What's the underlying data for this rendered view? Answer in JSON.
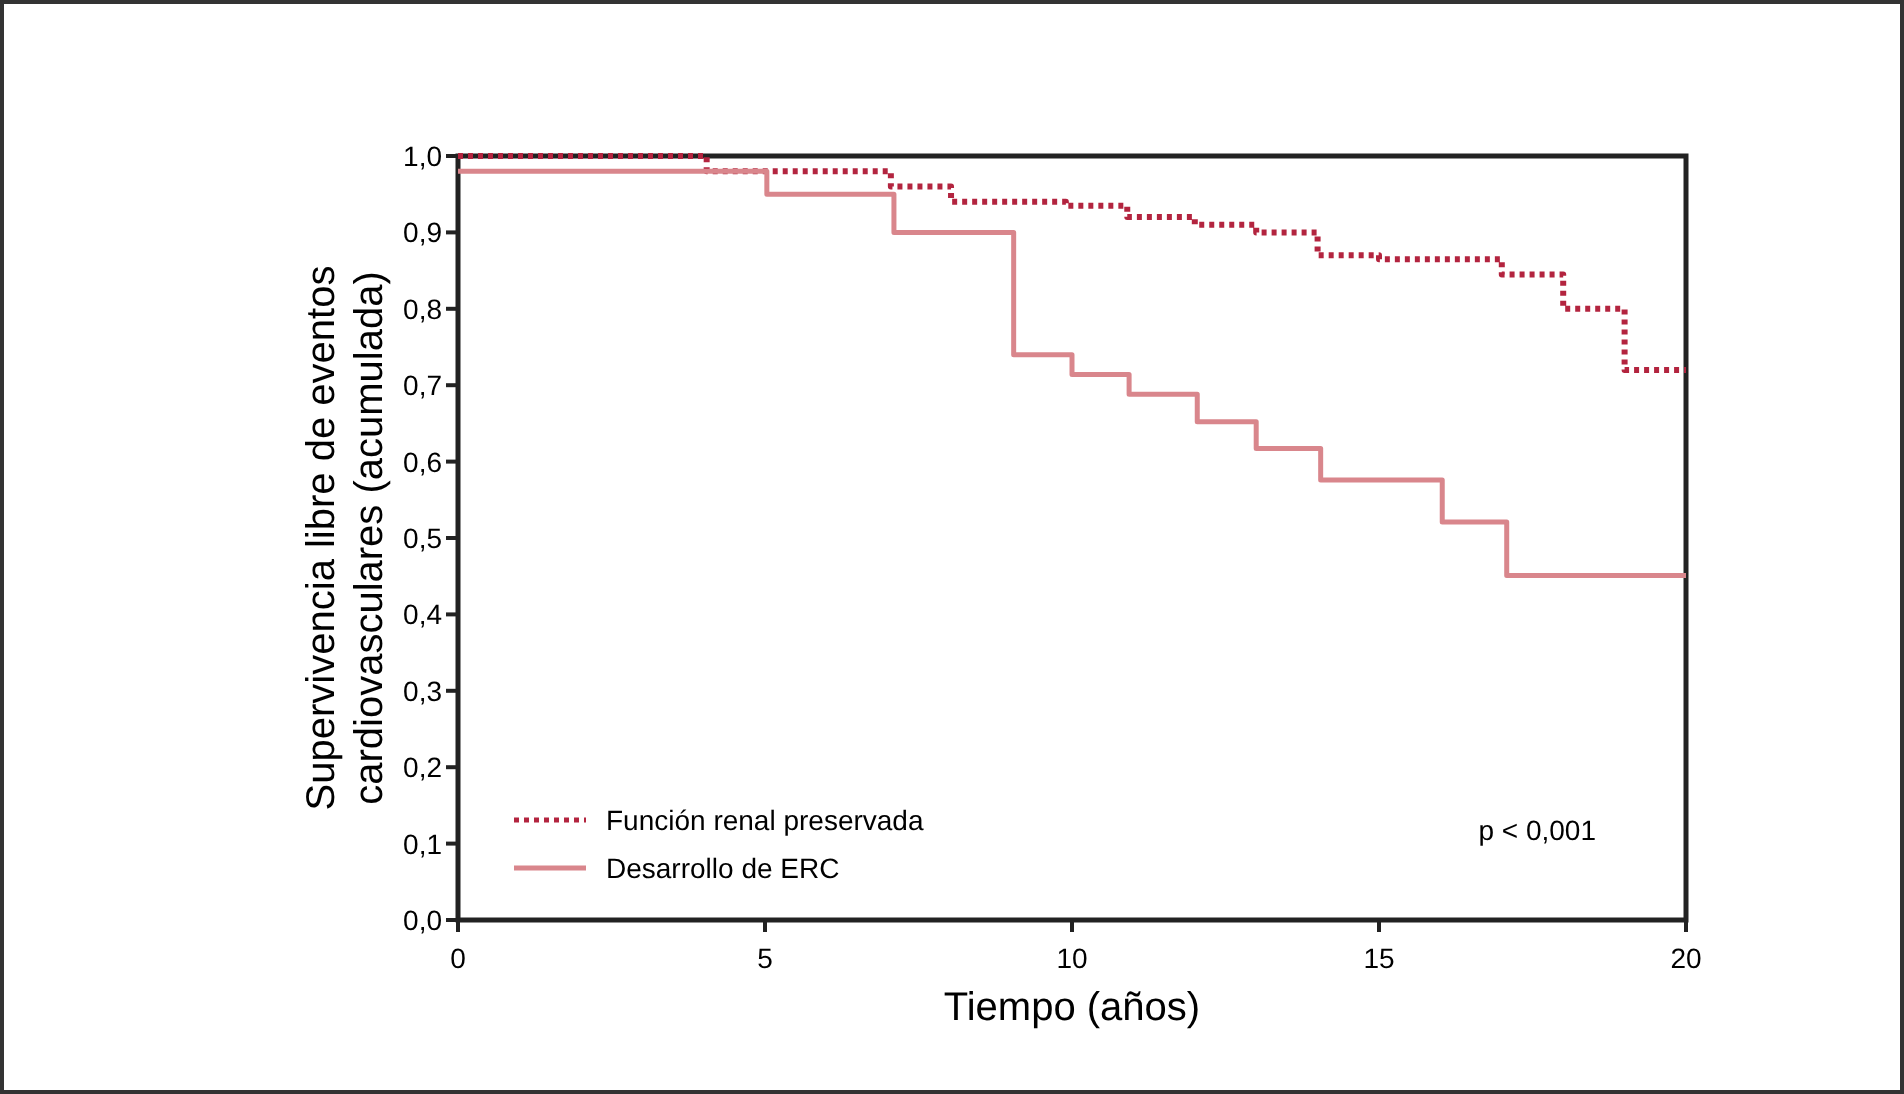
{
  "chart_data": {
    "type": "step",
    "xlabel": "Tiempo (años)",
    "ylabel": "Supervivencia libre de eventos cardiovasculares (acumulada)",
    "xlim": [
      0,
      20
    ],
    "ylim": [
      0,
      1
    ],
    "xticks": [
      0,
      5,
      10,
      15,
      20
    ],
    "yticks": [
      {
        "value": 0,
        "label": "0,0"
      },
      {
        "value": 0.1,
        "label": "0,1"
      },
      {
        "value": 0.2,
        "label": "0,2"
      },
      {
        "value": 0.3,
        "label": "0,3"
      },
      {
        "value": 0.4,
        "label": "0,4"
      },
      {
        "value": 0.5,
        "label": "0,5"
      },
      {
        "value": 0.6,
        "label": "0,6"
      },
      {
        "value": 0.7,
        "label": "0,7"
      },
      {
        "value": 0.8,
        "label": "0,8"
      },
      {
        "value": 0.9,
        "label": "0,9"
      },
      {
        "value": 1,
        "label": "1,0"
      }
    ],
    "grid": false,
    "legend": "bottom left",
    "annotations": [
      "p < 0,001"
    ],
    "series": [
      {
        "name": "Función renal preservada",
        "color": "#b3243f",
        "line_style": "dotted",
        "x": [
          0,
          4.05,
          7.05,
          8.03,
          9.9,
          10.9,
          12,
          13,
          14,
          15,
          17,
          18,
          19,
          20
        ],
        "values": [
          1,
          0.98,
          0.96,
          0.94,
          0.935,
          0.92,
          0.91,
          0.9,
          0.87,
          0.865,
          0.845,
          0.8,
          0.72,
          0.72
        ]
      },
      {
        "name": "Desarrollo de ERC",
        "color": "#d9868c",
        "line_style": "solid",
        "x": [
          0,
          5.03,
          7.1,
          9.05,
          10,
          10.93,
          12.04,
          13,
          14.05,
          16.03,
          17.08,
          20
        ],
        "values": [
          0.98,
          0.95,
          0.9,
          0.74,
          0.714,
          0.688,
          0.652,
          0.617,
          0.576,
          0.521,
          0.451,
          0.451
        ]
      }
    ]
  }
}
